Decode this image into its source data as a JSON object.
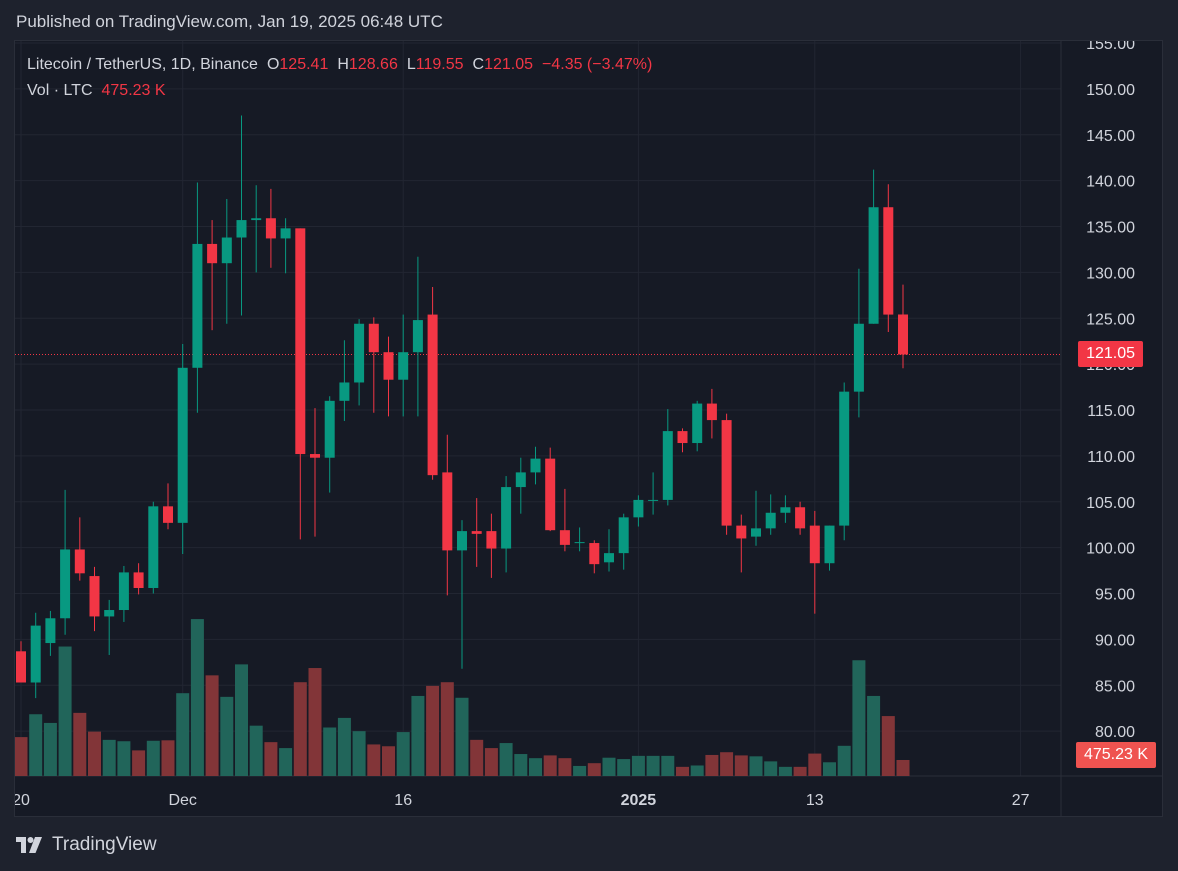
{
  "header": {
    "published": "Published on TradingView.com, Jan 19, 2025 06:48 UTC"
  },
  "legend": {
    "symbol": "Litecoin / TetherUS, 1D, Binance",
    "o_label": "O",
    "o_value": "125.41",
    "h_label": "H",
    "h_value": "128.66",
    "l_label": "L",
    "l_value": "119.55",
    "c_label": "C",
    "c_value": "121.05",
    "change": "−4.35 (−3.47%)",
    "vol_label": "Vol · LTC",
    "vol_value": "475.23 K"
  },
  "price_badge": "121.05",
  "vol_badge": "475.23 K",
  "footer": {
    "brand": "TradingView"
  },
  "colors": {
    "up": "#089981",
    "down": "#f23645",
    "vol_up": "#21655a",
    "vol_down": "#823538",
    "grid": "#222632",
    "axis_text": "#d1d4dc",
    "background": "#161a25"
  },
  "chart_data": {
    "type": "candlestick",
    "title": "Litecoin / TetherUS, 1D, Binance",
    "price_ticks": [
      "80.00",
      "85.00",
      "90.00",
      "95.00",
      "100.00",
      "105.00",
      "110.00",
      "115.00",
      "120.00",
      "125.00",
      "130.00",
      "135.00",
      "140.00",
      "145.00",
      "150.00",
      "155.00"
    ],
    "x_ticks": [
      {
        "label": "20",
        "index": 0,
        "bold": false
      },
      {
        "label": "Dec",
        "index": 11,
        "bold": false
      },
      {
        "label": "16",
        "index": 26,
        "bold": false
      },
      {
        "label": "2025",
        "index": 42,
        "bold": true
      },
      {
        "label": "13",
        "index": 54,
        "bold": false
      },
      {
        "label": "27",
        "index": 68,
        "bold": false
      }
    ],
    "ylim": [
      77.5,
      155.0
    ],
    "current_price": 121.05,
    "vol_max": 40,
    "candles": [
      {
        "date": "2024-11-20",
        "o": 88.7,
        "h": 89.8,
        "l": 85.8,
        "c": 85.3,
        "v": 8.5
      },
      {
        "date": "2024-11-21",
        "o": 85.3,
        "h": 92.9,
        "l": 83.6,
        "c": 91.5,
        "v": 13.5
      },
      {
        "date": "2024-11-22",
        "o": 89.6,
        "h": 93.1,
        "l": 88.2,
        "c": 92.3,
        "v": 11.6
      },
      {
        "date": "2024-11-23",
        "o": 92.3,
        "h": 106.3,
        "l": 90.5,
        "c": 99.8,
        "v": 28.3
      },
      {
        "date": "2024-11-24",
        "o": 99.8,
        "h": 103.3,
        "l": 96.4,
        "c": 97.2,
        "v": 13.8
      },
      {
        "date": "2024-11-25",
        "o": 96.9,
        "h": 97.9,
        "l": 90.9,
        "c": 92.5,
        "v": 9.7
      },
      {
        "date": "2024-11-26",
        "o": 92.5,
        "h": 94.3,
        "l": 88.3,
        "c": 93.2,
        "v": 7.9
      },
      {
        "date": "2024-11-27",
        "o": 93.2,
        "h": 98.0,
        "l": 91.9,
        "c": 97.3,
        "v": 7.6
      },
      {
        "date": "2024-11-28",
        "o": 97.3,
        "h": 98.3,
        "l": 94.9,
        "c": 95.6,
        "v": 5.6
      },
      {
        "date": "2024-11-29",
        "o": 95.6,
        "h": 105.0,
        "l": 95.0,
        "c": 104.5,
        "v": 7.7
      },
      {
        "date": "2024-11-30",
        "o": 104.5,
        "h": 107.0,
        "l": 102.0,
        "c": 102.7,
        "v": 7.8
      },
      {
        "date": "2024-12-01",
        "o": 102.7,
        "h": 122.2,
        "l": 99.3,
        "c": 119.6,
        "v": 18.1
      },
      {
        "date": "2024-12-02",
        "o": 119.6,
        "h": 139.8,
        "l": 114.7,
        "c": 133.1,
        "v": 34.3
      },
      {
        "date": "2024-12-03",
        "o": 133.1,
        "h": 135.7,
        "l": 123.7,
        "c": 131.0,
        "v": 22.0
      },
      {
        "date": "2024-12-04",
        "o": 131.0,
        "h": 138.0,
        "l": 124.4,
        "c": 133.8,
        "v": 17.3
      },
      {
        "date": "2024-12-05",
        "o": 133.8,
        "h": 147.1,
        "l": 125.3,
        "c": 135.7,
        "v": 24.4
      },
      {
        "date": "2024-12-06",
        "o": 135.7,
        "h": 139.5,
        "l": 130.0,
        "c": 135.9,
        "v": 11.0
      },
      {
        "date": "2024-12-07",
        "o": 135.9,
        "h": 139.1,
        "l": 130.5,
        "c": 133.7,
        "v": 7.4
      },
      {
        "date": "2024-12-08",
        "o": 133.7,
        "h": 135.9,
        "l": 129.9,
        "c": 134.8,
        "v": 6.1
      },
      {
        "date": "2024-12-09",
        "o": 134.8,
        "h": 134.8,
        "l": 100.9,
        "c": 110.2,
        "v": 20.5
      },
      {
        "date": "2024-12-10",
        "o": 110.2,
        "h": 115.2,
        "l": 101.2,
        "c": 109.8,
        "v": 23.6
      },
      {
        "date": "2024-12-11",
        "o": 109.8,
        "h": 116.5,
        "l": 106.0,
        "c": 116.0,
        "v": 10.6
      },
      {
        "date": "2024-12-12",
        "o": 116.0,
        "h": 122.6,
        "l": 113.8,
        "c": 118.0,
        "v": 12.7
      },
      {
        "date": "2024-12-13",
        "o": 118.0,
        "h": 124.9,
        "l": 115.5,
        "c": 124.4,
        "v": 9.8
      },
      {
        "date": "2024-12-14",
        "o": 124.4,
        "h": 125.1,
        "l": 114.7,
        "c": 121.3,
        "v": 6.9
      },
      {
        "date": "2024-12-15",
        "o": 121.3,
        "h": 123.0,
        "l": 114.3,
        "c": 118.3,
        "v": 6.5
      },
      {
        "date": "2024-12-16",
        "o": 118.3,
        "h": 125.4,
        "l": 114.3,
        "c": 121.3,
        "v": 9.6
      },
      {
        "date": "2024-12-17",
        "o": 121.3,
        "h": 131.7,
        "l": 114.3,
        "c": 124.8,
        "v": 17.5
      },
      {
        "date": "2024-12-18",
        "o": 125.4,
        "h": 128.4,
        "l": 107.4,
        "c": 107.9,
        "v": 19.7
      },
      {
        "date": "2024-12-19",
        "o": 108.2,
        "h": 112.3,
        "l": 94.8,
        "c": 99.7,
        "v": 20.5
      },
      {
        "date": "2024-12-20",
        "o": 99.7,
        "h": 103.0,
        "l": 86.8,
        "c": 101.8,
        "v": 17.1
      },
      {
        "date": "2024-12-21",
        "o": 101.8,
        "h": 105.4,
        "l": 97.9,
        "c": 101.5,
        "v": 7.9
      },
      {
        "date": "2024-12-22",
        "o": 101.8,
        "h": 103.7,
        "l": 96.7,
        "c": 99.9,
        "v": 6.1
      },
      {
        "date": "2024-12-23",
        "o": 99.9,
        "h": 107.8,
        "l": 97.3,
        "c": 106.6,
        "v": 7.2
      },
      {
        "date": "2024-12-24",
        "o": 106.6,
        "h": 109.8,
        "l": 103.7,
        "c": 108.2,
        "v": 4.8
      },
      {
        "date": "2024-12-25",
        "o": 108.2,
        "h": 111.0,
        "l": 106.9,
        "c": 109.7,
        "v": 3.9
      },
      {
        "date": "2024-12-26",
        "o": 109.7,
        "h": 110.9,
        "l": 101.8,
        "c": 101.9,
        "v": 4.5
      },
      {
        "date": "2024-12-27",
        "o": 101.9,
        "h": 106.4,
        "l": 99.6,
        "c": 100.3,
        "v": 3.9
      },
      {
        "date": "2024-12-28",
        "o": 100.5,
        "h": 102.2,
        "l": 99.6,
        "c": 100.6,
        "v": 2.2
      },
      {
        "date": "2024-12-29",
        "o": 100.5,
        "h": 100.8,
        "l": 97.2,
        "c": 98.2,
        "v": 2.8
      },
      {
        "date": "2024-12-30",
        "o": 98.4,
        "h": 102.0,
        "l": 97.4,
        "c": 99.4,
        "v": 4.0
      },
      {
        "date": "2024-12-31",
        "o": 99.4,
        "h": 103.7,
        "l": 97.6,
        "c": 103.3,
        "v": 3.7
      },
      {
        "date": "2025-01-01",
        "o": 103.3,
        "h": 105.7,
        "l": 102.3,
        "c": 105.2,
        "v": 4.4
      },
      {
        "date": "2025-01-02",
        "o": 105.2,
        "h": 108.2,
        "l": 103.6,
        "c": 105.2,
        "v": 4.4
      },
      {
        "date": "2025-01-03",
        "o": 105.2,
        "h": 115.1,
        "l": 104.6,
        "c": 112.7,
        "v": 4.4
      },
      {
        "date": "2025-01-04",
        "o": 112.7,
        "h": 113.0,
        "l": 110.4,
        "c": 111.4,
        "v": 2.0
      },
      {
        "date": "2025-01-05",
        "o": 111.4,
        "h": 116.0,
        "l": 110.5,
        "c": 115.7,
        "v": 2.3
      },
      {
        "date": "2025-01-06",
        "o": 115.7,
        "h": 117.3,
        "l": 111.9,
        "c": 113.9,
        "v": 4.6
      },
      {
        "date": "2025-01-07",
        "o": 113.9,
        "h": 114.6,
        "l": 101.4,
        "c": 102.4,
        "v": 5.2
      },
      {
        "date": "2025-01-08",
        "o": 102.4,
        "h": 103.6,
        "l": 97.3,
        "c": 101.0,
        "v": 4.5
      },
      {
        "date": "2025-01-09",
        "o": 101.2,
        "h": 106.2,
        "l": 100.2,
        "c": 102.1,
        "v": 4.3
      },
      {
        "date": "2025-01-10",
        "o": 102.1,
        "h": 105.8,
        "l": 101.4,
        "c": 103.8,
        "v": 3.2
      },
      {
        "date": "2025-01-11",
        "o": 103.8,
        "h": 105.7,
        "l": 102.7,
        "c": 104.4,
        "v": 2.0
      },
      {
        "date": "2025-01-12",
        "o": 104.4,
        "h": 105.0,
        "l": 101.4,
        "c": 102.1,
        "v": 2.0
      },
      {
        "date": "2025-01-13",
        "o": 102.4,
        "h": 104.0,
        "l": 92.8,
        "c": 98.3,
        "v": 4.9
      },
      {
        "date": "2025-01-14",
        "o": 98.3,
        "h": 102.4,
        "l": 97.5,
        "c": 102.4,
        "v": 3.0
      },
      {
        "date": "2025-01-15",
        "o": 102.4,
        "h": 118.0,
        "l": 100.8,
        "c": 117.0,
        "v": 6.6
      },
      {
        "date": "2025-01-16",
        "o": 117.0,
        "h": 130.4,
        "l": 114.2,
        "c": 124.4,
        "v": 25.3
      },
      {
        "date": "2025-01-17",
        "o": 124.4,
        "h": 141.2,
        "l": 124.4,
        "c": 137.1,
        "v": 17.5
      },
      {
        "date": "2025-01-18",
        "o": 137.1,
        "h": 139.6,
        "l": 123.5,
        "c": 125.4,
        "v": 13.1
      },
      {
        "date": "2025-01-19",
        "o": 125.41,
        "h": 128.66,
        "l": 119.55,
        "c": 121.05,
        "v": 3.5
      }
    ]
  }
}
